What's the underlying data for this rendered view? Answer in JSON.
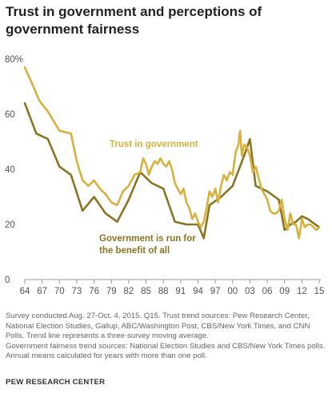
{
  "chart_data": {
    "type": "line",
    "title": "Trust in government and perceptions of government fairness",
    "xlabel": "",
    "ylabel": "",
    "xlim": [
      1964,
      2015
    ],
    "ylim": [
      0,
      80
    ],
    "grid": false,
    "x_ticks": [
      "64",
      "67",
      "70",
      "73",
      "76",
      "79",
      "82",
      "85",
      "88",
      "91",
      "94",
      "97",
      "00",
      "03",
      "06",
      "09",
      "12",
      "15"
    ],
    "x_tick_years": [
      1964,
      1967,
      1970,
      1973,
      1976,
      1979,
      1982,
      1985,
      1988,
      1991,
      1994,
      1997,
      2000,
      2003,
      2006,
      2009,
      2012,
      2015
    ],
    "y_ticks": [
      0,
      20,
      40,
      60,
      80
    ],
    "y_tick_labels": [
      "0",
      "20",
      "40",
      "60",
      "80%"
    ],
    "series": [
      {
        "name": "Trust in government",
        "color": "#d8b13d",
        "x": [
          1964,
          1965.5,
          1966.5,
          1968,
          1970,
          1972,
          1973,
          1974,
          1975,
          1976,
          1977,
          1978,
          1979,
          1980,
          1981,
          1982,
          1983,
          1984,
          1984.5,
          1985,
          1985.5,
          1986,
          1986.5,
          1987,
          1987.5,
          1988,
          1988.5,
          1989,
          1989.5,
          1990,
          1990.5,
          1991,
          1991.5,
          1992,
          1992.5,
          1993,
          1993.5,
          1994,
          1994.5,
          1995,
          1995.5,
          1996,
          1996.5,
          1997,
          1997.5,
          1998,
          1998.5,
          1999,
          1999.5,
          2000,
          2000.5,
          2001,
          2001.3,
          2001.6,
          2002,
          2002.5,
          2003,
          2003.5,
          2004,
          2004.5,
          2005,
          2005.5,
          2006,
          2006.5,
          2007,
          2007.5,
          2008,
          2008.5,
          2009,
          2009.5,
          2010,
          2010.5,
          2011,
          2011.5,
          2012,
          2012.5,
          2013,
          2013.5,
          2014,
          2014.5,
          2015
        ],
        "values": [
          77,
          70,
          65,
          61,
          54,
          53,
          43,
          36,
          34,
          36,
          33,
          31,
          28,
          27,
          32,
          34,
          38,
          39,
          44,
          42,
          38,
          41,
          43,
          42,
          44,
          42,
          41,
          43,
          40,
          35,
          33,
          31,
          33,
          28,
          26,
          22,
          24,
          21,
          19,
          21,
          26,
          32,
          30,
          33,
          28,
          34,
          38,
          36,
          39,
          38,
          46,
          49,
          54,
          45,
          49,
          48,
          45,
          39,
          41,
          37,
          33,
          31,
          29,
          25,
          24,
          24,
          25,
          29,
          22,
          18,
          24,
          20,
          20,
          15,
          22,
          19,
          20,
          20,
          19,
          18,
          19
        ]
      },
      {
        "name": "Government is run for the benefit of all",
        "color": "#8a7523",
        "x": [
          1964,
          1966,
          1968,
          1970,
          1972,
          1974,
          1976,
          1978,
          1980,
          1982,
          1984,
          1986,
          1988,
          1990,
          1992,
          1994,
          1995,
          1996,
          1998,
          2000,
          2002,
          2003,
          2004,
          2006,
          2008,
          2009,
          2010,
          2011,
          2012,
          2013,
          2015
        ],
        "values": [
          64,
          53,
          51,
          41,
          38,
          25,
          30,
          24,
          21,
          29,
          39,
          35,
          33,
          21,
          20,
          20,
          15,
          27,
          30,
          34,
          45,
          51,
          34,
          32,
          29,
          18,
          20,
          21,
          23,
          22,
          19
        ]
      }
    ],
    "annotations": [
      {
        "text": "Trust in government",
        "series": 0
      },
      {
        "text": [
          "Government is run for",
          "the benefit of all"
        ],
        "series": 1
      }
    ]
  },
  "notes": {
    "line1": "Survey conducted Aug. 27-Oct. 4, 2015. Q15. Trust trend sources: Pew Research Center, National Election Studies, Gallup, ABC/Washington Post, CBS/New York Times, and CNN Polls. Trend line represents a three-survey moving average.",
    "line2": "Government fairness trend sources: National Election Studies and CBS/New York Times polls. Annual means calculated for years with more than one poll."
  },
  "source": "PEW RESEARCH CENTER"
}
